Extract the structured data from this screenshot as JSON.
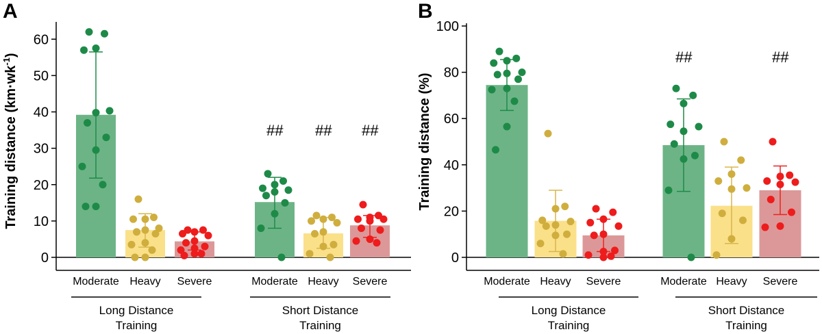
{
  "colors": {
    "moderate_bar": "#6cb486",
    "moderate_dot": "#1e8a48",
    "moderate_line": "#1e8a48",
    "heavy_bar": "#fbe08a",
    "heavy_dot": "#cfae3e",
    "heavy_line": "#d8b64c",
    "severe_bar": "#dc9898",
    "severe_dot": "#ee1c1c",
    "severe_line": "#ee2020"
  },
  "chart_data": [
    {
      "type": "bar",
      "panel": "A",
      "ylabel_main": "Training distance (km·wk",
      "ylabel_sup": "-1",
      "ylabel_end": ")",
      "ylim": [
        0,
        64
      ],
      "yticks": [
        0,
        10,
        20,
        30,
        40,
        50,
        60
      ],
      "groups": [
        {
          "name_line1": "Long Distance",
          "name_line2": "Training",
          "bars": [
            {
              "category": "Moderate",
              "value": 39.2,
              "error_low": 21.8,
              "error_high": 56.5,
              "significance": "",
              "points": [
                62,
                61.5,
                57.5,
                57,
                40.3,
                39.8,
                37,
                33,
                29.5,
                25,
                20,
                14,
                14
              ]
            },
            {
              "category": "Heavy",
              "value": 7.5,
              "error_low": 2.8,
              "error_high": 12.0,
              "significance": "",
              "points": [
                16,
                11,
                10.5,
                10.5,
                8,
                7.5,
                7,
                6.5,
                4,
                3.5,
                2,
                0,
                0
              ]
            },
            {
              "category": "Severe",
              "value": 4.4,
              "error_low": 2.0,
              "error_high": 7.0,
              "significance": "",
              "points": [
                7.5,
                7.5,
                7,
                6.5,
                6,
                4.5,
                4,
                3,
                2.5,
                2,
                1,
                1,
                0.5
              ]
            }
          ]
        },
        {
          "name_line1": "Short Distance",
          "name_line2": "Training",
          "bars": [
            {
              "category": "Moderate",
              "value": 15.2,
              "error_low": 8.0,
              "error_high": 22.0,
              "significance": "##",
              "points": [
                23,
                21,
                20,
                19,
                18.5,
                18,
                17,
                15,
                12,
                8,
                0
              ]
            },
            {
              "category": "Heavy",
              "value": 6.6,
              "error_low": 2.5,
              "error_high": 11.0,
              "significance": "##",
              "points": [
                11.5,
                11,
                10.5,
                10,
                9.5,
                7,
                6.5,
                3.5,
                3,
                1,
                0
              ]
            },
            {
              "category": "Severe",
              "value": 8.8,
              "error_low": 5.5,
              "error_high": 11.5,
              "significance": "##",
              "points": [
                14.5,
                11.5,
                11,
                10.5,
                10.5,
                10,
                8,
                7.5,
                5,
                4.5,
                4
              ]
            }
          ]
        }
      ]
    },
    {
      "type": "bar",
      "panel": "B",
      "ylabel_main": "Training distance (%)",
      "ylabel_sup": "",
      "ylabel_end": "",
      "ylim": [
        0,
        100
      ],
      "yticks": [
        0,
        20,
        40,
        60,
        80,
        100
      ],
      "groups": [
        {
          "name_line1": "Long Distance",
          "name_line2": "Training",
          "bars": [
            {
              "category": "Moderate",
              "value": 74.5,
              "error_low": 63.5,
              "error_high": 85.5,
              "significance": "",
              "points": [
                89,
                86,
                85,
                84,
                80,
                79.5,
                79,
                77,
                73,
                72.5,
                67.5,
                56.5,
                46.5
              ]
            },
            {
              "category": "Heavy",
              "value": 15.8,
              "error_low": 2.5,
              "error_high": 29.0,
              "significance": "",
              "points": [
                53.5,
                22,
                21,
                16,
                15.5,
                14,
                13.5,
                10,
                9.5,
                6,
                1.5
              ]
            },
            {
              "category": "Severe",
              "value": 9.5,
              "error_low": 2.5,
              "error_high": 16.5,
              "significance": "",
              "points": [
                21,
                19.5,
                16.5,
                15,
                13.5,
                10,
                9.5,
                3,
                2.5,
                1,
                0.5,
                0
              ]
            }
          ]
        },
        {
          "name_line1": "Short Distance",
          "name_line2": "Training",
          "bars": [
            {
              "category": "Moderate",
              "value": 48.5,
              "error_low": 28.5,
              "error_high": 68.5,
              "significance": "##",
              "points": [
                73,
                70,
                66.5,
                57.5,
                56.5,
                54.5,
                49,
                44,
                42.5,
                29,
                0
              ]
            },
            {
              "category": "Heavy",
              "value": 22.3,
              "error_low": 6.0,
              "error_high": 39.0,
              "significance": "",
              "points": [
                50,
                42,
                36,
                33,
                30,
                29.5,
                19,
                16,
                8,
                1
              ]
            },
            {
              "category": "Severe",
              "value": 29.0,
              "error_low": 18.5,
              "error_high": 39.5,
              "significance": "##",
              "points": [
                50,
                35.5,
                35,
                33,
                32.5,
                31.5,
                25,
                19.5,
                13.5,
                13
              ]
            }
          ]
        }
      ]
    }
  ]
}
